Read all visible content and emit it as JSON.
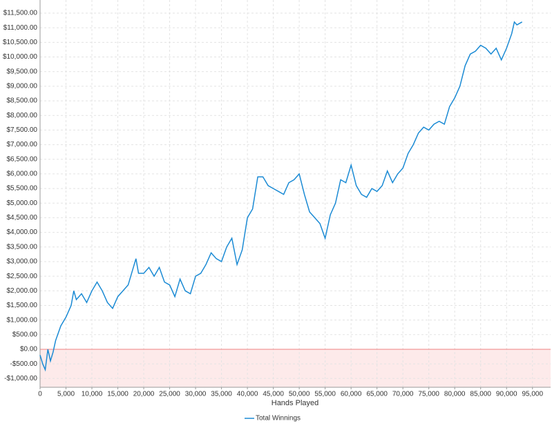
{
  "chart_data": {
    "type": "line",
    "x_label": "Hands Played",
    "x": [
      0,
      500,
      1000,
      1500,
      2000,
      2500,
      3000,
      4000,
      5000,
      6000,
      6500,
      7000,
      8000,
      9000,
      10000,
      11000,
      12000,
      13000,
      14000,
      15000,
      16000,
      17000,
      18000,
      18500,
      19000,
      20000,
      21000,
      22000,
      23000,
      24000,
      25000,
      26000,
      27000,
      28000,
      29000,
      30000,
      31000,
      32000,
      33000,
      34000,
      35000,
      36000,
      37000,
      38000,
      39000,
      40000,
      41000,
      42000,
      43000,
      44000,
      45000,
      46000,
      47000,
      48000,
      49000,
      50000,
      51000,
      52000,
      53000,
      54000,
      55000,
      56000,
      57000,
      58000,
      59000,
      60000,
      61000,
      62000,
      63000,
      64000,
      65000,
      66000,
      67000,
      68000,
      69000,
      70000,
      71000,
      72000,
      73000,
      74000,
      75000,
      76000,
      77000,
      78000,
      79000,
      80000,
      81000,
      82000,
      83000,
      84000,
      85000,
      86000,
      87000,
      88000,
      89000,
      90000,
      91000,
      91500,
      92000,
      93000
    ],
    "series": [
      {
        "name": "Total Winnings",
        "color": "#1a8ad4",
        "values": [
          -200,
          -500,
          -700,
          0,
          -400,
          -100,
          300,
          800,
          1100,
          1500,
          2000,
          1700,
          1900,
          1600,
          2000,
          2300,
          2000,
          1600,
          1400,
          1800,
          2000,
          2200,
          2800,
          3100,
          2600,
          2600,
          2800,
          2500,
          2800,
          2300,
          2200,
          1800,
          2400,
          2000,
          1900,
          2500,
          2600,
          2900,
          3300,
          3100,
          3000,
          3500,
          3800,
          2900,
          3400,
          4500,
          4800,
          5900,
          5900,
          5600,
          5500,
          5400,
          5300,
          5700,
          5800,
          6000,
          5300,
          4700,
          4500,
          4300,
          3800,
          4600,
          5000,
          5800,
          5700,
          6300,
          5600,
          5300,
          5200,
          5500,
          5400,
          5600,
          6100,
          5700,
          6000,
          6200,
          6700,
          7000,
          7400,
          7600,
          7500,
          7700,
          7800,
          7700,
          8300,
          8600,
          9000,
          9700,
          10100,
          10200,
          10400,
          10300,
          10100,
          10300,
          9900,
          10300,
          10800,
          11200,
          11100,
          11200
        ]
      }
    ],
    "xlim": [
      0,
      98500
    ],
    "ylim": [
      -1300,
      11950
    ],
    "xticks": [
      0,
      {
        "value": 5000,
        "label": "5,000"
      },
      {
        "value": 10000,
        "label": "10,000"
      },
      {
        "value": 15000,
        "label": "15,000"
      },
      {
        "value": 20000,
        "label": "20,000"
      },
      {
        "value": 25000,
        "label": "25,000"
      },
      {
        "value": 30000,
        "label": "30,000"
      },
      {
        "value": 35000,
        "label": "35,000"
      },
      {
        "value": 40000,
        "label": "40,000"
      },
      {
        "value": 45000,
        "label": "45,000"
      },
      {
        "value": 50000,
        "label": "50,000"
      },
      {
        "value": 55000,
        "label": "55,000"
      },
      {
        "value": 60000,
        "label": "60,000"
      },
      {
        "value": 65000,
        "label": "65,000"
      },
      {
        "value": 70000,
        "label": "70,000"
      },
      {
        "value": 75000,
        "label": "75,000"
      },
      {
        "value": 80000,
        "label": "80,000"
      },
      {
        "value": 85000,
        "label": "85,000"
      },
      {
        "value": 90000,
        "label": "90,000"
      },
      {
        "value": 95000,
        "label": "95,000"
      }
    ],
    "yticks": [
      {
        "value": -1000,
        "label": "-$1,000.00"
      },
      {
        "value": -500,
        "label": "-$500.00"
      },
      {
        "value": 0,
        "label": "$0.00"
      },
      {
        "value": 500,
        "label": "$500.00"
      },
      {
        "value": 1000,
        "label": "$1,000.00"
      },
      {
        "value": 1500,
        "label": "$1,500.00"
      },
      {
        "value": 2000,
        "label": "$2,000.00"
      },
      {
        "value": 2500,
        "label": "$2,500.00"
      },
      {
        "value": 3000,
        "label": "$3,000.00"
      },
      {
        "value": 3500,
        "label": "$3,500.00"
      },
      {
        "value": 4000,
        "label": "$4,000.00"
      },
      {
        "value": 4500,
        "label": "$4,500.00"
      },
      {
        "value": 5000,
        "label": "$5,000.00"
      },
      {
        "value": 5500,
        "label": "$5,500.00"
      },
      {
        "value": 6000,
        "label": "$6,000.00"
      },
      {
        "value": 6500,
        "label": "$6,500.00"
      },
      {
        "value": 7000,
        "label": "$7,000.00"
      },
      {
        "value": 7500,
        "label": "$7,500.00"
      },
      {
        "value": 8000,
        "label": "$8,000.00"
      },
      {
        "value": 8500,
        "label": "$8,500.00"
      },
      {
        "value": 9000,
        "label": "$9,000.00"
      },
      {
        "value": 9500,
        "label": "$9,500.00"
      },
      {
        "value": 10000,
        "label": "$10,000.00"
      },
      {
        "value": 10500,
        "label": "$10,500.00"
      },
      {
        "value": 11000,
        "label": "$11,000.00"
      },
      {
        "value": 11500,
        "label": "$11,500.00"
      }
    ],
    "grid": true,
    "negative_region_color": "#fdeaea",
    "zero_line_color": "#f08080",
    "legend": "bottom"
  }
}
